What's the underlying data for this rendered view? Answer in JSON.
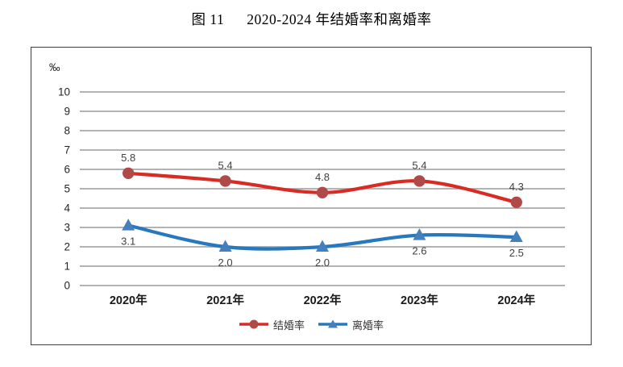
{
  "figure": {
    "label": "图 11",
    "title": "2020-2024 年结婚率和离婚率"
  },
  "chart_data": {
    "type": "line",
    "title": "图 11 2020-2024 年结婚率和离婚率",
    "unit": "‰",
    "categories": [
      "2020年",
      "2021年",
      "2022年",
      "2023年",
      "2024年"
    ],
    "series": [
      {
        "name": "结婚率",
        "values": [
          5.8,
          5.4,
          4.8,
          5.4,
          4.3
        ],
        "line_color": "#d92b23",
        "marker_color": "#b04a48",
        "marker": "circle",
        "label_position": "above"
      },
      {
        "name": "离婚率",
        "values": [
          3.1,
          2.0,
          2.0,
          2.6,
          2.5
        ],
        "line_color": "#2878bf",
        "marker_color": "#4380bd",
        "marker": "triangle",
        "label_position": "below"
      }
    ],
    "ylim": [
      0,
      10
    ],
    "ytick_step": 1,
    "grid": true,
    "smooth": true,
    "legend_position": "bottom"
  },
  "colors": {
    "gridline": "#a8a8a8",
    "axis_text": "#262626",
    "xaxis_text": "#1a1a1a",
    "data_label": "#404040",
    "frame_border": "#3d3d3d"
  }
}
